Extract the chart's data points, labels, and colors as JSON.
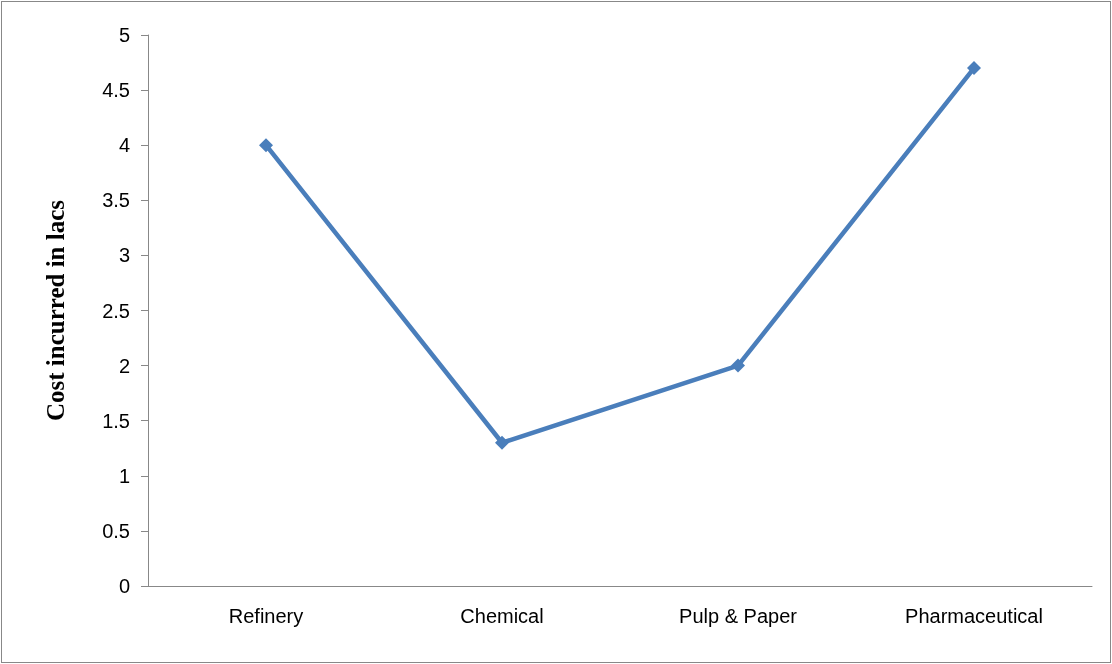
{
  "chart_data": {
    "type": "line",
    "ylabel": "Cost incurred in lacs",
    "categories": [
      "Refinery",
      "Chemical",
      "Pulp & Paper",
      "Pharmaceutical"
    ],
    "series": [
      {
        "color": "#4a7ebb",
        "values": [
          4,
          1.3,
          2,
          4.7
        ]
      }
    ],
    "ylim": [
      0,
      5
    ],
    "yticks": [
      0,
      0.5,
      1,
      1.5,
      2,
      2.5,
      3,
      3.5,
      4,
      4.5,
      5
    ],
    "grid": false,
    "marker": "diamond",
    "line_style": "solid"
  }
}
